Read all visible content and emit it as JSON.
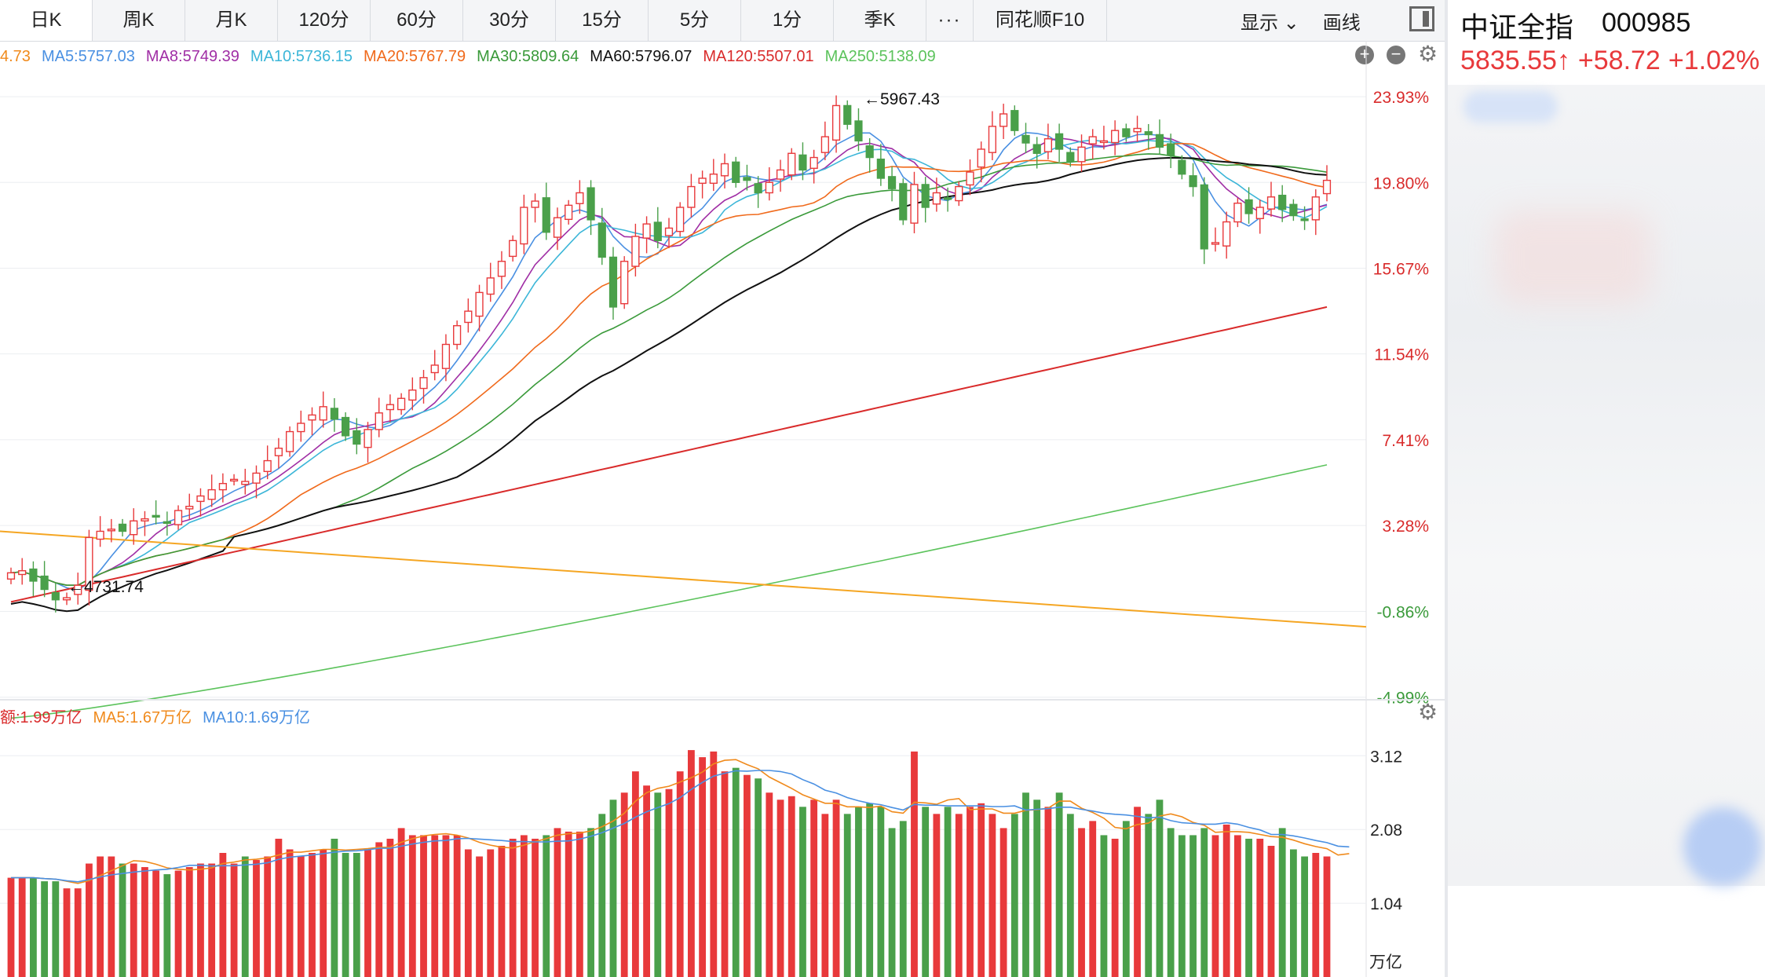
{
  "tabs": [
    "日K",
    "周K",
    "月K",
    "120分",
    "60分",
    "30分",
    "15分",
    "5分",
    "1分",
    "季K",
    "···",
    "同花顺F10"
  ],
  "tools": {
    "display": "显示",
    "draw": "画线"
  },
  "ma_legend": [
    {
      "label": "4.73",
      "color": "#f08a1c"
    },
    {
      "label": "MA5:5757.03",
      "color": "#4a90e2"
    },
    {
      "label": "MA8:5749.39",
      "color": "#a02ea5"
    },
    {
      "label": "MA10:5736.15",
      "color": "#3cb6d8"
    },
    {
      "label": "MA20:5767.79",
      "color": "#f06a1c"
    },
    {
      "label": "MA30:5809.64",
      "color": "#3a9a3a"
    },
    {
      "label": "MA60:5796.07",
      "color": "#111111"
    },
    {
      "label": "MA120:5507.01",
      "color": "#d92b2b"
    },
    {
      "label": "MA250:5138.09",
      "color": "#5cc35c"
    }
  ],
  "price_axis_labels": [
    "23.93%",
    "19.80%",
    "15.67%",
    "11.54%",
    "7.41%",
    "3.28%",
    "-0.86%",
    "-4.99%"
  ],
  "annotations": {
    "high": "←5967.43",
    "low": "←4731.74"
  },
  "vol_legend": [
    {
      "label": "额:1.99万亿",
      "color": "#d92b2b"
    },
    {
      "label": "MA5:1.67万亿",
      "color": "#f08a1c"
    },
    {
      "label": "MA10:1.69万亿",
      "color": "#4a90e2"
    }
  ],
  "vol_axis_labels": [
    "3.12",
    "2.08",
    "1.04",
    "万亿"
  ],
  "stock": {
    "name": "中证全指",
    "code": "000985",
    "price": "5835.55↑",
    "change": "+58.72",
    "pct": "+1.02%"
  },
  "colors": {
    "up": "#e8393b",
    "down": "#4aa04a"
  },
  "chart_data": {
    "type": "candlestick",
    "ylim": [
      -5.0,
      24.5
    ],
    "close_path": [
      1.0,
      1.1,
      0.6,
      0.2,
      -0.3,
      -0.2,
      0.4,
      2.7,
      3.0,
      3.1,
      3.0,
      3.5,
      3.6,
      3.7,
      3.4,
      4.0,
      4.2,
      4.7,
      5.0,
      5.3,
      5.5,
      5.4,
      5.8,
      6.4,
      7.0,
      7.8,
      8.2,
      8.6,
      9.0,
      8.4,
      7.6,
      7.2,
      7.9,
      8.7,
      9.1,
      9.4,
      9.8,
      10.4,
      11.0,
      12.0,
      12.9,
      13.6,
      14.5,
      15.2,
      16.0,
      17.0,
      18.6,
      18.9,
      17.4,
      18.1,
      18.7,
      19.3,
      18.0,
      16.2,
      13.8,
      16.0,
      17.2,
      17.8,
      17.0,
      17.6,
      18.6,
      19.6,
      20.0,
      20.2,
      20.7,
      19.8,
      19.9,
      19.3,
      19.8,
      20.4,
      21.2,
      20.4,
      21.0,
      22.0,
      23.5,
      22.6,
      21.8,
      21.0,
      20.0,
      19.5,
      18.0,
      19.7,
      18.6,
      19.3,
      19.0,
      19.6,
      20.3,
      21.4,
      22.5,
      23.1,
      22.3,
      21.7,
      21.2,
      21.9,
      21.4,
      20.8,
      21.5,
      22.0,
      21.8,
      22.3,
      22.0,
      22.4,
      22.1,
      21.5,
      21.1,
      20.2,
      19.6,
      16.6,
      16.9,
      17.9,
      18.8,
      18.3,
      18.6,
      19.1,
      18.5,
      18.2,
      18.0,
      19.1,
      19.9
    ],
    "volume": [
      1.4,
      1.4,
      1.4,
      1.35,
      1.35,
      1.25,
      1.25,
      1.6,
      1.7,
      1.7,
      1.6,
      1.6,
      1.55,
      1.5,
      1.45,
      1.5,
      1.55,
      1.6,
      1.6,
      1.75,
      1.6,
      1.7,
      1.65,
      1.7,
      1.95,
      1.8,
      1.7,
      1.75,
      1.8,
      1.95,
      1.75,
      1.75,
      1.8,
      1.9,
      1.95,
      2.1,
      2.0,
      2.0,
      2.0,
      2.0,
      2.0,
      1.8,
      1.7,
      1.8,
      1.85,
      1.95,
      2.0,
      1.95,
      2.0,
      2.1,
      2.05,
      2.05,
      2.1,
      2.3,
      2.5,
      2.6,
      2.9,
      2.7,
      2.6,
      2.65,
      2.9,
      3.2,
      3.1,
      3.18,
      2.9,
      2.95,
      2.85,
      2.8,
      2.6,
      2.5,
      2.55,
      2.4,
      2.5,
      2.3,
      2.5,
      2.3,
      2.4,
      2.45,
      2.4,
      2.1,
      2.2,
      3.18,
      2.4,
      2.3,
      2.4,
      2.3,
      2.4,
      2.45,
      2.3,
      2.1,
      2.3,
      2.6,
      2.5,
      2.4,
      2.6,
      2.3,
      2.1,
      2.2,
      2.0,
      1.95,
      2.2,
      2.4,
      2.3,
      2.5,
      2.1,
      2.0,
      2.0,
      2.1,
      2.0,
      2.15,
      2.0,
      1.95,
      1.95,
      1.85,
      2.1,
      1.8,
      1.7,
      1.75,
      1.7,
      1.65,
      1.9
    ]
  }
}
